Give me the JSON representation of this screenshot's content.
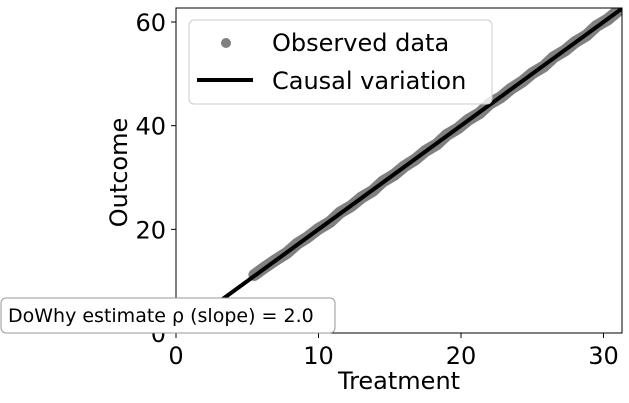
{
  "chart_data": {
    "type": "scatter",
    "xlabel": "Treatment",
    "ylabel": "Outcome",
    "xlim": [
      0,
      31.3
    ],
    "ylim": [
      0,
      62.7
    ],
    "xticks": [
      0,
      10,
      20,
      30
    ],
    "yticks": [
      0,
      20,
      40,
      60
    ],
    "grid": false,
    "legend_position": "upper-left",
    "series": [
      {
        "name": "Observed data",
        "kind": "scatter",
        "color": "#808080",
        "x": [
          5.5,
          6.2,
          7.0,
          7.8,
          8.5,
          9.2,
          10.0,
          10.8,
          11.5,
          12.3,
          13.0,
          13.8,
          14.5,
          15.3,
          16.0,
          16.8,
          17.5,
          18.3,
          19.0,
          19.8,
          20.5,
          21.3,
          22.0,
          22.8,
          23.5,
          24.3,
          25.0,
          25.8,
          26.5,
          27.3,
          28.0,
          28.8,
          29.5,
          30.3,
          31.0
        ],
        "y": [
          11.2,
          12.6,
          14.1,
          15.5,
          17.2,
          18.4,
          20.1,
          21.4,
          23.2,
          24.5,
          26.1,
          27.4,
          29.2,
          30.5,
          32.1,
          33.5,
          35.1,
          36.4,
          38.2,
          39.5,
          41.1,
          42.4,
          44.2,
          45.5,
          47.1,
          48.5,
          50.1,
          51.4,
          53.2,
          54.5,
          56.1,
          57.4,
          59.2,
          60.5,
          62.1
        ]
      },
      {
        "name": "Causal variation",
        "kind": "line",
        "color": "#000000",
        "x": [
          0,
          31.3
        ],
        "y": [
          0,
          62.6
        ]
      }
    ],
    "annotation": "DoWhy estimate ρ (slope) = 2.0"
  }
}
